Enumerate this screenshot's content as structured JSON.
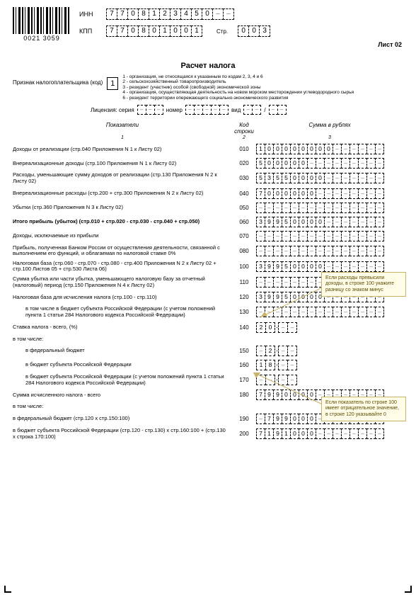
{
  "barcode_text": "0021 3059",
  "inn_label": "ИНН",
  "kpp_label": "КПП",
  "page_label": "Стр.",
  "inn": [
    "7",
    "7",
    "0",
    "8",
    "1",
    "2",
    "3",
    "4",
    "5",
    "0",
    "",
    ""
  ],
  "kpp": [
    "7",
    "7",
    "0",
    "8",
    "0",
    "1",
    "0",
    "0",
    "1"
  ],
  "page_no": [
    "0",
    "0",
    "3"
  ],
  "sheet": "Лист 02",
  "title": "Расчет налога",
  "sign_label": "Признак налогоплательщика (код)",
  "sign_value": "1",
  "sign_notes": [
    "1 - организация, не относящаяся к указанным по кодам 2, 3, 4 и 6",
    "2 - сельскохозяйственный товаропроизводитель",
    "3 - резидент (участник) особой (свободной) экономической зоны",
    "4 - организация, осуществляющая деятельность на новом морском месторождении углеводородного сырья",
    "6 - резидент территории опережающего социально-экономического развития"
  ],
  "license": {
    "label": "Лицензия: серия",
    "num_label": "номер",
    "kind_label": "вид"
  },
  "col_headers": {
    "c1": "Показатели",
    "c2": "Код строки",
    "c3": "Сумма в рублях",
    "n1": "1",
    "n2": "2",
    "n3": "3"
  },
  "rows": [
    {
      "label": "Доходы от реализации (стр.040 Приложения N 1 к Листу 02)",
      "code": "010",
      "v": [
        "1",
        "0",
        "0",
        "0",
        "0",
        "0",
        "0",
        "0",
        "0",
        "",
        "",
        "",
        "",
        "",
        ""
      ]
    },
    {
      "label": "Внереализационные доходы (стр.100 Приложения N 1 к Листу 02)",
      "code": "020",
      "v": [
        "5",
        "0",
        "0",
        "0",
        "0",
        "0",
        "",
        "",
        "",
        "",
        "",
        "",
        "",
        "",
        ""
      ]
    },
    {
      "label": "Расходы, уменьшающие сумму доходов от реализации (стр.130 Приложения N 2 к Листу 02)",
      "code": "030",
      "v": [
        "5",
        "3",
        "5",
        "5",
        "0",
        "0",
        "0",
        "0",
        "",
        "",
        "",
        "",
        "",
        "",
        ""
      ]
    },
    {
      "label": "Внереализационные расходы (стр.200 + стр.300 Приложения N 2 к Листу 02)",
      "code": "040",
      "v": [
        "7",
        "0",
        "0",
        "0",
        "0",
        "0",
        "0",
        "",
        "",
        "",
        "",
        "",
        "",
        "",
        ""
      ]
    },
    {
      "label": "Убытки (стр.360 Приложения N 3 к Листу 02)",
      "code": "050",
      "v": [
        "",
        "",
        "",
        "",
        "",
        "",
        "",
        "",
        "",
        "",
        "",
        "",
        "",
        "",
        ""
      ]
    },
    {
      "label": "Итого прибыль (убыток) (стр.010 + стр.020 - стр.030 - стр.040 + стр.050)",
      "code": "060",
      "bold": true,
      "v": [
        "3",
        "9",
        "9",
        "5",
        "0",
        "0",
        "0",
        "0",
        "",
        "",
        "",
        "",
        "",
        "",
        ""
      ]
    },
    {
      "label": "Доходы, исключаемые из прибыли",
      "code": "070",
      "v": [
        "",
        "",
        "",
        "",
        "",
        "",
        "",
        "",
        "",
        "",
        "",
        "",
        "",
        "",
        ""
      ]
    },
    {
      "label": "Прибыль, полученная Банком России от осуществления деятельности, связанной с выполнением его функций, и облагаемая по налоговой ставке 0%",
      "code": "080",
      "v": [
        "",
        "",
        "",
        "",
        "",
        "",
        "",
        "",
        "",
        "",
        "",
        "",
        "",
        "",
        ""
      ]
    },
    {
      "label": "Налоговая база\n(стр.060 - стр.070 - стр.080 - стр.400 Приложения N 2 к Листу 02 + стр.100 Листов 05 + стр.530 Листа 06)",
      "code": "100",
      "v": [
        "3",
        "9",
        "9",
        "5",
        "0",
        "0",
        "0",
        "0",
        "",
        "",
        "",
        "",
        "",
        "",
        ""
      ]
    },
    {
      "label": "Сумма убытка или части убытка, уменьшающего налоговую базу за отчетный (налоговый) период (стр.150 Приложения N 4 к Листу 02)",
      "code": "110",
      "v": [
        "",
        "",
        "",
        "",
        "",
        "",
        "",
        "",
        "",
        "",
        "",
        "",
        "",
        "",
        ""
      ]
    },
    {
      "label": "Налоговая база для исчисления налога (стр.100 - стр.110)",
      "code": "120",
      "v": [
        "3",
        "9",
        "9",
        "5",
        "0",
        "0",
        "0",
        "0",
        "",
        "",
        "",
        "",
        "",
        "",
        ""
      ]
    },
    {
      "label": "в том числе в бюджет субъекта Российской Федерации (с учетом положений пункта 1 статьи 284 Налогового кодекса Российской Федерации)",
      "code": "130",
      "indent": true,
      "v": [
        "",
        "",
        "",
        "",
        "",
        "",
        "",
        "",
        "",
        "",
        "",
        "",
        "",
        "",
        ""
      ]
    }
  ],
  "pct_rows": [
    {
      "label": "Ставка налога - всего, (%)",
      "code": "140",
      "int": [
        "2",
        "0"
      ],
      "frac": [
        "",
        ""
      ]
    },
    {
      "label": "в том числе:",
      "code": "",
      "plain": true
    },
    {
      "label": "в федеральный бюджет",
      "code": "150",
      "indent": true,
      "int": [
        "",
        "2"
      ],
      "frac": [
        "",
        ""
      ]
    },
    {
      "label": "в бюджет субъекта Российской Федерации",
      "code": "160",
      "indent": true,
      "int": [
        "1",
        "8"
      ],
      "frac": [
        "",
        ""
      ]
    },
    {
      "label": "в бюджет субъекта Российской Федерации (с учетом положений пункта 1 статьи 284 Налогового кодекса Российской Федерации)",
      "code": "170",
      "indent": true,
      "int": [
        "",
        ""
      ],
      "frac": [
        "",
        ""
      ]
    }
  ],
  "sum_rows": [
    {
      "label": "Сумма исчисленного налога - всего",
      "code": "180",
      "v": [
        "7",
        "9",
        "9",
        "0",
        "0",
        "0",
        "0",
        "",
        "",
        "",
        "",
        "",
        "",
        "",
        ""
      ]
    },
    {
      "label": "в том числе:",
      "code": "",
      "plain": true
    },
    {
      "label": "в федеральный бюджет (стр.120 х стр.150:100)",
      "code": "190",
      "v": [
        "",
        "7",
        "9",
        "9",
        "0",
        "0",
        "0",
        "",
        "",
        "",
        "",
        "",
        "",
        "",
        ""
      ]
    },
    {
      "label": "в бюджет субъекта Российской Федерации\n(стр.120 - стр.130) х стр.160:100 + (стр.130 х строка 170:100)",
      "code": "200",
      "v": [
        "7",
        "1",
        "9",
        "1",
        "0",
        "0",
        "0",
        "",
        "",
        "",
        "",
        "",
        "",
        "",
        ""
      ]
    }
  ],
  "note1": "Если расходы превысили доходы, в строке 100 укажите разницу со знаком минус",
  "note2": "Если показатель по строке 100 имеет отрицательное значение, в строке 120 указывайте 0"
}
